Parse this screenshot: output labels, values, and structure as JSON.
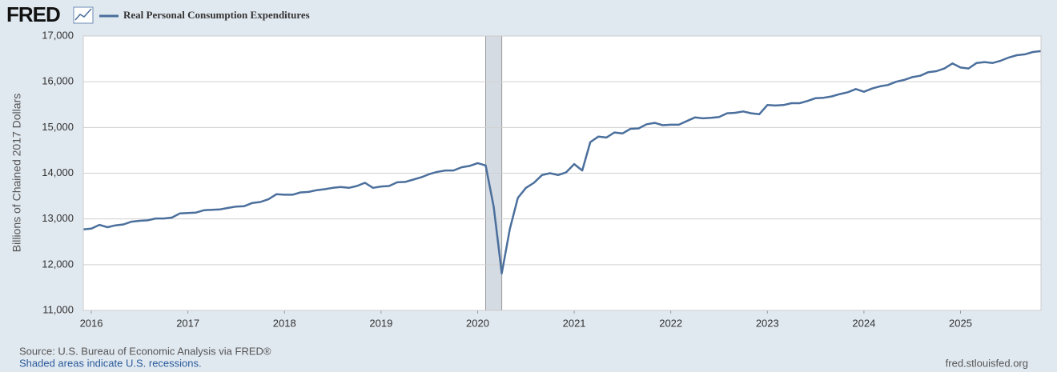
{
  "logo": "FRED",
  "chart_data": {
    "type": "line",
    "ylabel": "Billions of Chained 2017 Dollars",
    "x": [
      "2015-12",
      "2016-01",
      "2016-02",
      "2016-03",
      "2016-04",
      "2016-05",
      "2016-06",
      "2016-07",
      "2016-08",
      "2016-09",
      "2016-10",
      "2016-11",
      "2016-12",
      "2017-01",
      "2017-02",
      "2017-03",
      "2017-04",
      "2017-05",
      "2017-06",
      "2017-07",
      "2017-08",
      "2017-09",
      "2017-10",
      "2017-11",
      "2017-12",
      "2018-01",
      "2018-02",
      "2018-03",
      "2018-04",
      "2018-05",
      "2018-06",
      "2018-07",
      "2018-08",
      "2018-09",
      "2018-10",
      "2018-11",
      "2018-12",
      "2019-01",
      "2019-02",
      "2019-03",
      "2019-04",
      "2019-05",
      "2019-06",
      "2019-07",
      "2019-08",
      "2019-09",
      "2019-10",
      "2019-11",
      "2019-12",
      "2020-01",
      "2020-02",
      "2020-03",
      "2020-04",
      "2020-05",
      "2020-06",
      "2020-07",
      "2020-08",
      "2020-09",
      "2020-10",
      "2020-11",
      "2020-12",
      "2021-01",
      "2021-02",
      "2021-03",
      "2021-04",
      "2021-05",
      "2021-06",
      "2021-07",
      "2021-08",
      "2021-09",
      "2021-10",
      "2021-11",
      "2021-12",
      "2022-01",
      "2022-02",
      "2022-03",
      "2022-04",
      "2022-05",
      "2022-06",
      "2022-07",
      "2022-08",
      "2022-09",
      "2022-10",
      "2022-11",
      "2022-12",
      "2023-01",
      "2023-02",
      "2023-03",
      "2023-04",
      "2023-05",
      "2023-06",
      "2023-07",
      "2023-08",
      "2023-09",
      "2023-10",
      "2023-11",
      "2023-12",
      "2024-01",
      "2024-02",
      "2024-03",
      "2024-04",
      "2024-05",
      "2024-06",
      "2024-07",
      "2024-08",
      "2024-09",
      "2024-10",
      "2024-11",
      "2024-12",
      "2025-01",
      "2025-02",
      "2025-03",
      "2025-04",
      "2025-05",
      "2025-06",
      "2025-07",
      "2025-08",
      "2025-09",
      "2025-10",
      "2025-11"
    ],
    "series": [
      {
        "name": "Real Personal Consumption Expenditures",
        "color": "#4b6f9c",
        "values": [
          12770,
          12790,
          12870,
          12820,
          12860,
          12880,
          12940,
          12960,
          12970,
          13010,
          13010,
          13030,
          13120,
          13130,
          13140,
          13190,
          13200,
          13210,
          13240,
          13270,
          13280,
          13350,
          13370,
          13430,
          13540,
          13530,
          13530,
          13580,
          13590,
          13630,
          13650,
          13680,
          13700,
          13680,
          13720,
          13790,
          13680,
          13710,
          13720,
          13800,
          13810,
          13860,
          13910,
          13980,
          14030,
          14060,
          14060,
          14130,
          14160,
          14220,
          14170,
          13260,
          11810,
          12780,
          13460,
          13680,
          13790,
          13960,
          14000,
          13960,
          14020,
          14200,
          14060,
          14680,
          14800,
          14780,
          14890,
          14870,
          14970,
          14980,
          15070,
          15100,
          15050,
          15060,
          15060,
          15140,
          15220,
          15200,
          15210,
          15230,
          15310,
          15320,
          15350,
          15310,
          15290,
          15490,
          15480,
          15490,
          15530,
          15530,
          15580,
          15640,
          15650,
          15680,
          15730,
          15770,
          15840,
          15780,
          15850,
          15900,
          15930,
          16000,
          16040,
          16100,
          16130,
          16210,
          16230,
          16290,
          16400,
          16310,
          16290,
          16410,
          16430,
          16410,
          16460,
          16530,
          16580,
          16600,
          16650,
          16670
        ]
      }
    ],
    "xlim": [
      "2015-12",
      "2025-11"
    ],
    "xticks": [
      "2016",
      "2017",
      "2018",
      "2019",
      "2020",
      "2021",
      "2022",
      "2023",
      "2024",
      "2025"
    ],
    "ylim": [
      11000,
      17000
    ],
    "yticks": [
      {
        "value": 11000,
        "label": "11,000"
      },
      {
        "value": 12000,
        "label": "12,000"
      },
      {
        "value": 13000,
        "label": "13,000"
      },
      {
        "value": 14000,
        "label": "14,000"
      },
      {
        "value": 15000,
        "label": "15,000"
      },
      {
        "value": 16000,
        "label": "16,000"
      },
      {
        "value": 17000,
        "label": "17,000"
      }
    ],
    "grid": true,
    "recessions": [
      {
        "start": "2020-02",
        "end": "2020-04"
      }
    ],
    "source": "Source: U.S. Bureau of Economic Analysis via FRED®",
    "note": "Shaded areas indicate U.S. recessions.",
    "url": "fred.stlouisfed.org"
  }
}
